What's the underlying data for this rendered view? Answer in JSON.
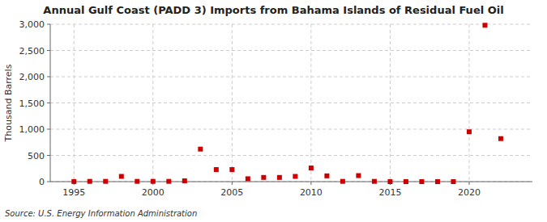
{
  "chart_data": {
    "type": "scatter",
    "title": "Annual Gulf Coast (PADD 3) Imports from Bahama Islands of Residual Fuel Oil",
    "ylabel": "Thousand Barrels",
    "source": "Source: U.S. Energy Information Administration",
    "x": [
      1995,
      1996,
      1997,
      1998,
      1999,
      2000,
      2001,
      2002,
      2003,
      2004,
      2005,
      2006,
      2007,
      2008,
      2009,
      2010,
      2011,
      2012,
      2013,
      2014,
      2015,
      2016,
      2017,
      2018,
      2019,
      2020,
      2021,
      2022
    ],
    "values": [
      2,
      5,
      5,
      100,
      5,
      5,
      5,
      15,
      620,
      230,
      230,
      55,
      80,
      80,
      100,
      260,
      110,
      5,
      115,
      5,
      0,
      0,
      0,
      0,
      0,
      950,
      2980,
      820
    ],
    "color": "#cc0000",
    "marker": "square",
    "xlim": [
      1993.5,
      2024
    ],
    "xticks": [
      1995,
      2000,
      2005,
      2010,
      2015,
      2020
    ],
    "ylim": [
      0,
      3000
    ],
    "yticks": [
      0,
      500,
      {
        "value": 1000,
        "label": "1,000"
      },
      {
        "value": 1500,
        "label": "1,500"
      },
      {
        "value": 2000,
        "label": "2,000"
      },
      {
        "value": 2500,
        "label": "2,500"
      },
      {
        "value": 3000,
        "label": "3,000"
      }
    ],
    "grid": true
  }
}
